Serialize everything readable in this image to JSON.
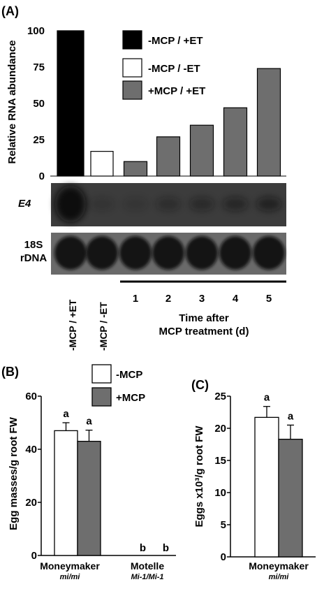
{
  "colors": {
    "black": "#000000",
    "white": "#ffffff",
    "gray": "#6e6e6e",
    "blot_bg": "#3c3c3c",
    "blot_band": "#0c0c0c"
  },
  "panel_a": {
    "label": "(A)",
    "blot_labels": {
      "e4": "E4",
      "rdna_line1": "18S",
      "rdna_line2": "rDNA"
    },
    "lane_labels": [
      "-MCP / +ET",
      "-MCP / -ET"
    ],
    "time_ticks": [
      "1",
      "2",
      "3",
      "4",
      "5"
    ],
    "time_label_line1": "Time after",
    "time_label_line2": "MCP treatment (d)"
  },
  "panel_b": {
    "label": "(B)",
    "sublabels": [
      "mi/mi",
      "Mi-1/Mi-1"
    ]
  },
  "panel_c": {
    "label": "(C)",
    "sublabels": [
      "mi/mi"
    ]
  },
  "chart_data": [
    {
      "type": "bar",
      "panel": "A",
      "title": "",
      "xlabel": "",
      "ylabel": "Relative RNA abundance",
      "ylim": [
        0,
        100
      ],
      "yticks": [
        "0",
        "25",
        "50",
        "75",
        "100"
      ],
      "grid": false,
      "legend_position": "top-right",
      "legend": [
        "-MCP / +ET",
        "-MCP / -ET",
        "+MCP / +ET"
      ],
      "categories": [
        "-MCP / +ET",
        "-MCP / -ET",
        "1",
        "2",
        "3",
        "4",
        "5"
      ],
      "values": [
        100,
        17,
        10,
        27,
        35,
        47,
        74
      ]
    },
    {
      "type": "bar",
      "panel": "B",
      "title": "",
      "xlabel": "",
      "ylabel": "Egg masses/g root FW",
      "ylim": [
        0,
        60
      ],
      "yticks": [
        "0",
        "20",
        "40",
        "60"
      ],
      "grid": false,
      "legend_position": "top",
      "categories": [
        "Moneymaker",
        "Motelle"
      ],
      "series": [
        {
          "name": "-MCP",
          "values": [
            47,
            0
          ],
          "errors": [
            3,
            0
          ],
          "letters": [
            "a",
            "b"
          ]
        },
        {
          "name": "+MCP",
          "values": [
            43,
            0
          ],
          "errors": [
            4.2,
            0
          ],
          "letters": [
            "a",
            "b"
          ]
        }
      ]
    },
    {
      "type": "bar",
      "panel": "C",
      "title": "",
      "xlabel": "",
      "ylabel": "Eggs x10³/g root FW",
      "ylim": [
        0,
        25
      ],
      "yticks": [
        "0",
        "5",
        "10",
        "15",
        "20",
        "25"
      ],
      "grid": false,
      "categories": [
        "Moneymaker"
      ],
      "series": [
        {
          "name": "",
          "values": [
            21.7
          ],
          "errors": [
            1.7
          ],
          "letters": [
            "a"
          ]
        },
        {
          "name": "",
          "values": [
            18.3
          ],
          "errors": [
            2.2
          ],
          "letters": [
            "a"
          ]
        }
      ]
    }
  ]
}
